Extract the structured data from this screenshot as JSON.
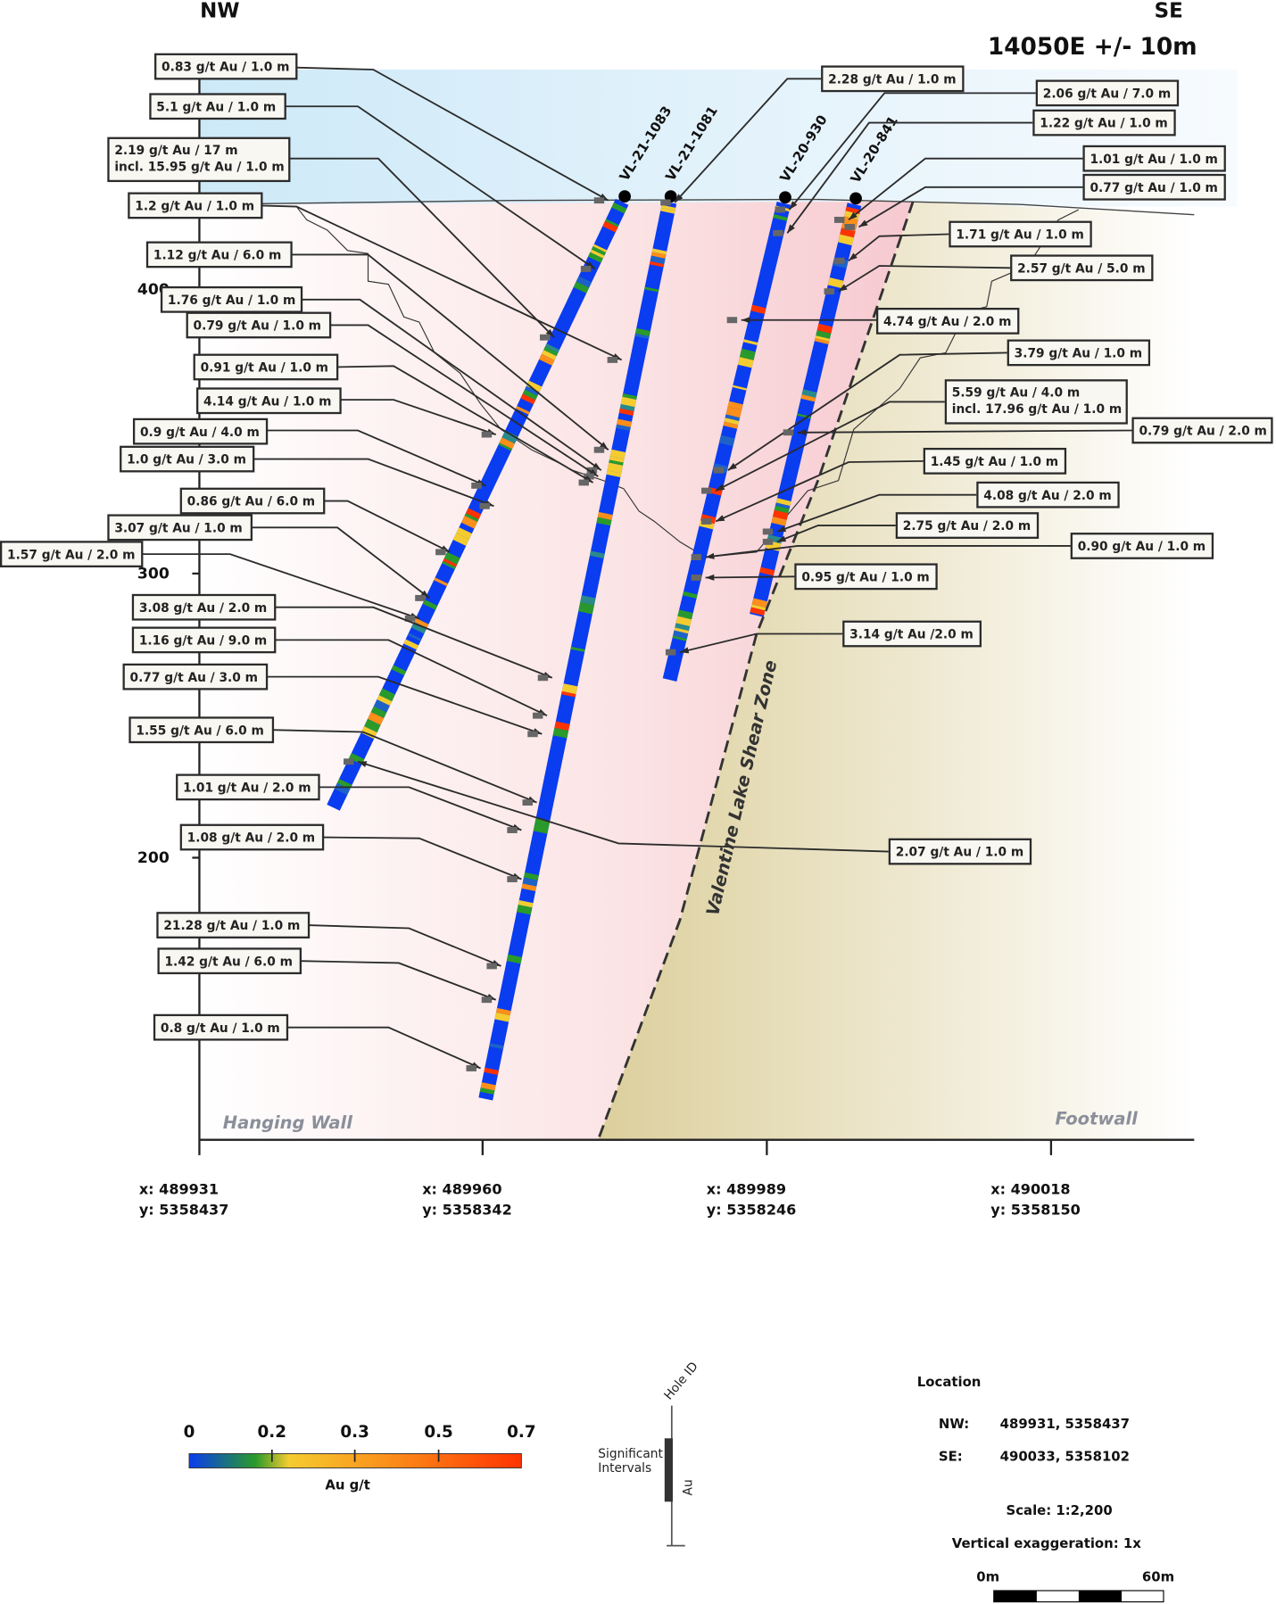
{
  "header": {
    "left_direction": "NW",
    "right_direction": "SE",
    "section_title": "14050E +/- 10m"
  },
  "elevation_ticks": [
    "400",
    "300",
    "200"
  ],
  "zones": {
    "hanging_wall": "Hanging Wall",
    "footwall": "Footwall",
    "shear_zone": "Valentine Lake Shear Zone"
  },
  "holes": [
    {
      "id": "VL-21-1083"
    },
    {
      "id": "VL-21-1081"
    },
    {
      "id": "VL-20-930"
    },
    {
      "id": "VL-20-841"
    }
  ],
  "intercepts": [
    {
      "lines": [
        "0.83 g/t Au / 1.0 m"
      ]
    },
    {
      "lines": [
        "5.1 g/t Au / 1.0 m"
      ]
    },
    {
      "lines": [
        "2.19 g/t Au / 17 m",
        "incl. 15.95 g/t Au / 1.0 m"
      ]
    },
    {
      "lines": [
        "1.2 g/t Au / 1.0 m"
      ]
    },
    {
      "lines": [
        "1.12 g/t Au / 6.0 m"
      ]
    },
    {
      "lines": [
        "1.76 g/t Au / 1.0 m"
      ]
    },
    {
      "lines": [
        "0.79 g/t Au / 1.0 m"
      ]
    },
    {
      "lines": [
        "0.91 g/t Au / 1.0 m"
      ]
    },
    {
      "lines": [
        "4.14 g/t Au / 1.0 m"
      ]
    },
    {
      "lines": [
        "0.9 g/t Au / 4.0 m"
      ]
    },
    {
      "lines": [
        "1.0 g/t Au / 3.0 m"
      ]
    },
    {
      "lines": [
        "0.86 g/t Au / 6.0 m"
      ]
    },
    {
      "lines": [
        "3.07 g/t Au / 1.0 m"
      ]
    },
    {
      "lines": [
        "1.57 g/t Au / 2.0 m"
      ]
    },
    {
      "lines": [
        "3.08 g/t Au / 2.0 m"
      ]
    },
    {
      "lines": [
        "1.16 g/t Au / 9.0 m"
      ]
    },
    {
      "lines": [
        "0.77 g/t Au / 3.0 m"
      ]
    },
    {
      "lines": [
        "1.55 g/t Au / 6.0 m"
      ]
    },
    {
      "lines": [
        "1.01 g/t Au / 2.0 m"
      ]
    },
    {
      "lines": [
        "1.08 g/t Au / 2.0 m"
      ]
    },
    {
      "lines": [
        "21.28 g/t Au / 1.0 m"
      ]
    },
    {
      "lines": [
        "1.42 g/t Au / 6.0 m"
      ]
    },
    {
      "lines": [
        "0.8 g/t Au / 1.0 m"
      ]
    },
    {
      "lines": [
        "2.28 g/t Au / 1.0 m"
      ]
    },
    {
      "lines": [
        "2.06 g/t Au / 7.0 m"
      ]
    },
    {
      "lines": [
        "1.22 g/t Au / 1.0 m"
      ]
    },
    {
      "lines": [
        "1.01 g/t Au / 1.0 m"
      ]
    },
    {
      "lines": [
        "0.77 g/t Au / 1.0 m"
      ]
    },
    {
      "lines": [
        "1.71 g/t Au / 1.0 m"
      ]
    },
    {
      "lines": [
        "2.57 g/t Au / 5.0 m"
      ]
    },
    {
      "lines": [
        "4.74 g/t Au / 2.0 m"
      ]
    },
    {
      "lines": [
        "3.79 g/t Au / 1.0 m"
      ]
    },
    {
      "lines": [
        "5.59 g/t Au / 4.0 m",
        "incl. 17.96 g/t Au / 1.0 m"
      ]
    },
    {
      "lines": [
        "0.79 g/t Au / 2.0 m"
      ]
    },
    {
      "lines": [
        "1.45 g/t Au / 1.0 m"
      ]
    },
    {
      "lines": [
        "4.08 g/t Au / 2.0 m"
      ]
    },
    {
      "lines": [
        "2.75 g/t Au / 2.0 m"
      ]
    },
    {
      "lines": [
        "0.90 g/t Au / 1.0 m"
      ]
    },
    {
      "lines": [
        "0.95 g/t Au / 1.0 m"
      ]
    },
    {
      "lines": [
        "3.14 g/t Au /2.0 m"
      ]
    },
    {
      "lines": [
        "2.07 g/t Au / 1.0 m"
      ]
    }
  ],
  "bottom_coordinates": [
    {
      "x": "x: 489931",
      "y": "y: 5358437"
    },
    {
      "x": "x: 489960",
      "y": "y: 5358342"
    },
    {
      "x": "x: 489989",
      "y": "y: 5358246"
    },
    {
      "x": "x: 490018",
      "y": "y: 5358150"
    }
  ],
  "legend": {
    "colorbar_ticks": [
      "0",
      "0.2",
      "0.3",
      "0.5",
      "0.7"
    ],
    "colorbar_label": "Au g/t",
    "colors": [
      "#0a3cf0",
      "#2a9a2a",
      "#f5cc30",
      "#fb8f1a",
      "#ff3300"
    ],
    "hole_id_label": "Hole ID",
    "significant_intervals_label": [
      "Significant",
      "Intervals"
    ],
    "au_label": "Au"
  },
  "location": {
    "title": "Location",
    "nw_label": "NW:",
    "nw_value": "489931, 5358437",
    "se_label": "SE:",
    "se_value": "490033, 5358102",
    "scale": "Scale: 1:2,200",
    "vertical_exaggeration": "Vertical exaggeration: 1x",
    "scalebar_start": "0m",
    "scalebar_end": "60m"
  }
}
